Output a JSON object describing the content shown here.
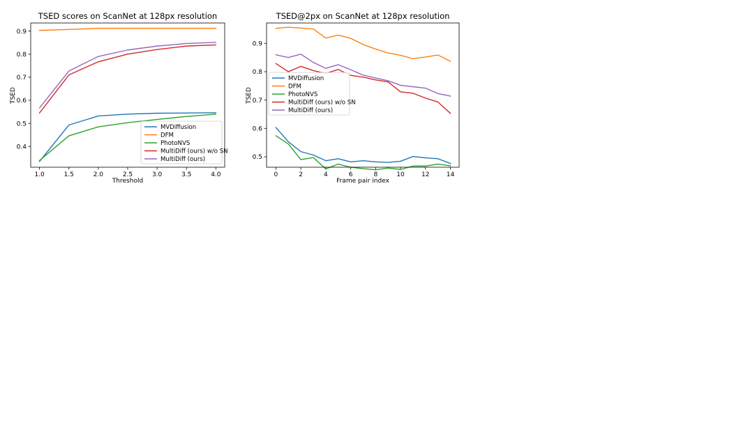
{
  "colors": {
    "MVDiffusion": "#1f77b4",
    "DFM": "#ff7f0e",
    "PhotoNVS": "#2ca02c",
    "MultiDiff (ours) w/o SN": "#d62728",
    "MultiDiff (ours)": "#9467bd"
  },
  "chart_data": [
    {
      "type": "line",
      "title": "TSED scores on ScanNet at 128px resolution",
      "xlabel": "Threshold",
      "ylabel": "TSED",
      "xlim": [
        0.85,
        4.15
      ],
      "ylim": [
        0.31,
        0.935
      ],
      "xticks": [
        1.0,
        1.5,
        2.0,
        2.5,
        3.0,
        3.5,
        4.0
      ],
      "xtick_labels": [
        "1.0",
        "1.5",
        "2.0",
        "2.5",
        "3.0",
        "3.5",
        "4.0"
      ],
      "yticks": [
        0.4,
        0.5,
        0.6,
        0.7,
        0.8,
        0.9
      ],
      "ytick_labels": [
        "0.4",
        "0.5",
        "0.6",
        "0.7",
        "0.8",
        "0.9"
      ],
      "legend_position": "lower-right",
      "x": [
        1.0,
        1.5,
        2.0,
        2.5,
        3.0,
        3.5,
        4.0
      ],
      "series": [
        {
          "name": "MVDiffusion",
          "values": [
            0.335,
            0.493,
            0.532,
            0.54,
            0.544,
            0.545,
            0.546
          ]
        },
        {
          "name": "DFM",
          "values": [
            0.903,
            0.907,
            0.912,
            0.912,
            0.912,
            0.912,
            0.912
          ]
        },
        {
          "name": "PhotoNVS",
          "values": [
            0.339,
            0.446,
            0.485,
            0.503,
            0.517,
            0.53,
            0.54
          ]
        },
        {
          "name": "MultiDiff (ours) w/o SN",
          "values": [
            0.545,
            0.71,
            0.767,
            0.8,
            0.82,
            0.835,
            0.84
          ]
        },
        {
          "name": "MultiDiff (ours)",
          "values": [
            0.567,
            0.727,
            0.79,
            0.818,
            0.835,
            0.846,
            0.851
          ]
        }
      ]
    },
    {
      "type": "line",
      "title": "TSED@2px on ScanNet at 128px resolution",
      "xlabel": "Frame pair index",
      "ylabel": "TSED",
      "xlim": [
        -0.75,
        14.7
      ],
      "ylim": [
        0.463,
        0.972
      ],
      "xticks": [
        0,
        2,
        4,
        6,
        8,
        10,
        12,
        14
      ],
      "xtick_labels": [
        "0",
        "2",
        "4",
        "6",
        "8",
        "10",
        "12",
        "14"
      ],
      "yticks": [
        0.5,
        0.6,
        0.7,
        0.8,
        0.9
      ],
      "ytick_labels": [
        "0.5",
        "0.6",
        "0.7",
        "0.8",
        "0.9"
      ],
      "legend_position": "center-left",
      "x": [
        0,
        1,
        2,
        3,
        4,
        5,
        6,
        7,
        8,
        9,
        10,
        11,
        12,
        13,
        14
      ],
      "series": [
        {
          "name": "MVDiffusion",
          "values": [
            0.603,
            0.553,
            0.518,
            0.506,
            0.486,
            0.493,
            0.482,
            0.486,
            0.482,
            0.48,
            0.484,
            0.501,
            0.496,
            0.493,
            0.476
          ]
        },
        {
          "name": "DFM",
          "values": [
            0.953,
            0.957,
            0.954,
            0.951,
            0.919,
            0.929,
            0.918,
            0.896,
            0.88,
            0.866,
            0.858,
            0.846,
            0.852,
            0.859,
            0.837
          ]
        },
        {
          "name": "PhotoNVS",
          "values": [
            0.574,
            0.545,
            0.49,
            0.497,
            0.457,
            0.474,
            0.463,
            0.458,
            0.454,
            0.46,
            0.455,
            0.467,
            0.467,
            0.474,
            0.468
          ]
        },
        {
          "name": "MultiDiff (ours) w/o SN",
          "values": [
            0.829,
            0.8,
            0.819,
            0.804,
            0.794,
            0.808,
            0.787,
            0.781,
            0.771,
            0.764,
            0.729,
            0.724,
            0.707,
            0.693,
            0.653
          ]
        },
        {
          "name": "MultiDiff (ours)",
          "values": [
            0.86,
            0.85,
            0.862,
            0.833,
            0.812,
            0.825,
            0.807,
            0.788,
            0.778,
            0.768,
            0.752,
            0.747,
            0.742,
            0.723,
            0.714
          ]
        }
      ]
    }
  ]
}
